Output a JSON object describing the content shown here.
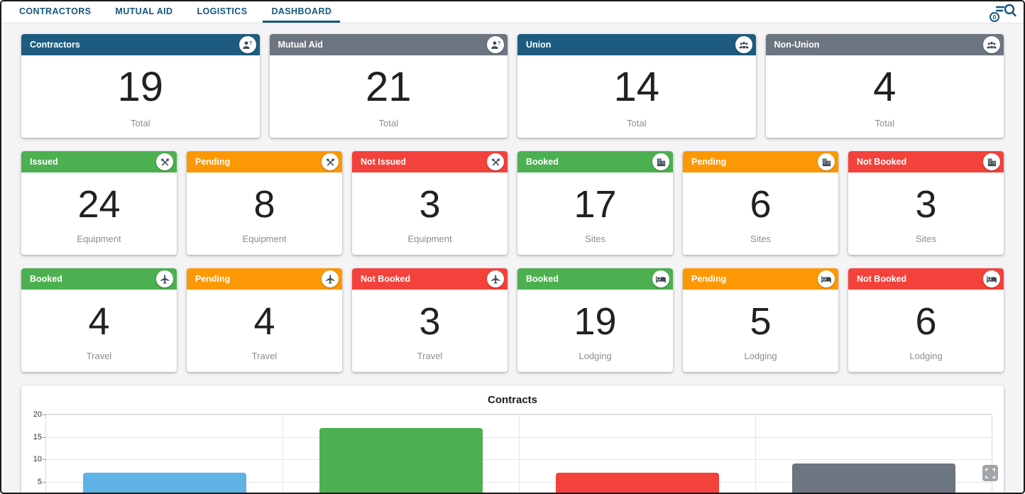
{
  "tabs": [
    {
      "label": "CONTRACTORS",
      "active": false
    },
    {
      "label": "MUTUAL AID",
      "active": false
    },
    {
      "label": "LOGISTICS",
      "active": false
    },
    {
      "label": "DASHBOARD",
      "active": true
    }
  ],
  "toolbar": {
    "filter_badge_count": "0"
  },
  "colors": {
    "teal": "#1d5c80",
    "gray": "#6c7580",
    "green": "#4caf50",
    "orange": "#fb9803",
    "red": "#f2423b",
    "tab_accent": "#15567e"
  },
  "card_rows": [
    {
      "cards": [
        {
          "title": "Contractors",
          "value": "19",
          "label": "Total",
          "color": "teal",
          "icon": "person-question"
        },
        {
          "title": "Mutual Aid",
          "value": "21",
          "label": "Total",
          "color": "gray",
          "icon": "person-question"
        },
        {
          "title": "Union",
          "value": "14",
          "label": "Total",
          "color": "teal",
          "icon": "people-group"
        },
        {
          "title": "Non-Union",
          "value": "4",
          "label": "Total",
          "color": "gray",
          "icon": "people-group"
        }
      ]
    },
    {
      "cards": [
        {
          "title": "Issued",
          "value": "24",
          "label": "Equipment",
          "color": "green",
          "icon": "tools"
        },
        {
          "title": "Pending",
          "value": "8",
          "label": "Equipment",
          "color": "orange",
          "icon": "tools"
        },
        {
          "title": "Not Issued",
          "value": "3",
          "label": "Equipment",
          "color": "red",
          "icon": "tools"
        },
        {
          "title": "Booked",
          "value": "17",
          "label": "Sites",
          "color": "green",
          "icon": "building"
        },
        {
          "title": "Pending",
          "value": "6",
          "label": "Sites",
          "color": "orange",
          "icon": "building"
        },
        {
          "title": "Not Booked",
          "value": "3",
          "label": "Sites",
          "color": "red",
          "icon": "building"
        }
      ]
    },
    {
      "cards": [
        {
          "title": "Booked",
          "value": "4",
          "label": "Travel",
          "color": "green",
          "icon": "airplane"
        },
        {
          "title": "Pending",
          "value": "4",
          "label": "Travel",
          "color": "orange",
          "icon": "airplane"
        },
        {
          "title": "Not Booked",
          "value": "3",
          "label": "Travel",
          "color": "red",
          "icon": "airplane"
        },
        {
          "title": "Booked",
          "value": "19",
          "label": "Lodging",
          "color": "green",
          "icon": "bed"
        },
        {
          "title": "Pending",
          "value": "5",
          "label": "Lodging",
          "color": "orange",
          "icon": "bed"
        },
        {
          "title": "Not Booked",
          "value": "6",
          "label": "Lodging",
          "color": "red",
          "icon": "bed"
        }
      ]
    }
  ],
  "chart_data": {
    "type": "bar",
    "title": "Contracts",
    "categories": [
      "",
      "",
      "",
      ""
    ],
    "series": [
      {
        "name": "Contracts",
        "values": [
          7,
          17,
          7,
          9
        ]
      }
    ],
    "bar_colors": [
      "#5fb3e4",
      "#4caf50",
      "#f2423b",
      "#6c7580"
    ],
    "yticks": [
      5,
      10,
      15,
      20
    ],
    "ylim": [
      0,
      20
    ],
    "grid": true,
    "legend": false,
    "x_axis_labels_visible": false
  }
}
